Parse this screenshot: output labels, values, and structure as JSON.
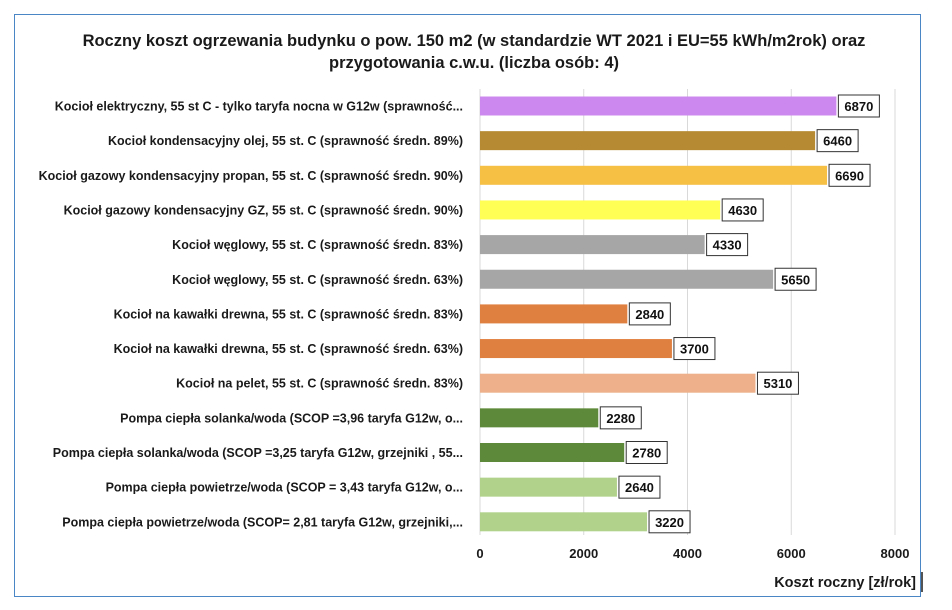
{
  "chart_data": {
    "type": "bar",
    "orientation": "horizontal",
    "title": "Roczny koszt ogrzewania budynku o pow. 150 m2 (w standardzie WT 2021 i EU=55 kWh/m2rok) oraz przygotowania c.w.u. (liczba osób: 4)",
    "xlabel": "Koszt roczny [zł/rok]",
    "ylabel": "",
    "xlim": [
      0,
      8000
    ],
    "x_ticks": [
      "0",
      "2000",
      "4000",
      "6000",
      "8000"
    ],
    "grid": true,
    "legend": "none",
    "categories": [
      "Kocioł  elektryczny, 55 st C - tylko taryfa nocna w G12w (sprawność...",
      "Kocioł  kondensacyjny olej, 55 st. C (sprawność średn. 89%)",
      "Kocioł gazowy kondensacyjny propan, 55 st. C (sprawność średn. 90%)",
      "Kocioł gazowy kondensacyjny GZ, 55 st. C (sprawność średn. 90%)",
      "Kocioł węglowy,  55 st. C (sprawność średn. 83%)",
      "Kocioł węglowy, 55 st. C (sprawność średn. 63%)",
      "Kocioł na kawałki drewna, 55 st. C (sprawność średn. 83%)",
      "Kocioł na kawałki drewna, 55 st. C (sprawność średn. 63%)",
      "Kocioł na pelet, 55 st. C (sprawność średn. 83%)",
      "Pompa ciepła solanka/woda (SCOP =3,96 taryfa G12w, o...",
      "Pompa ciepła solanka/woda (SCOP =3,25 taryfa G12w, grzejniki , 55...",
      "Pompa ciepła powietrze/woda (SCOP = 3,43 taryfa G12w, o...",
      "Pompa ciepła powietrze/woda (SCOP= 2,81 taryfa G12w, grzejniki,..."
    ],
    "values": [
      6870,
      6460,
      6690,
      4630,
      4330,
      5650,
      2840,
      3700,
      5310,
      2280,
      2780,
      2640,
      3220
    ],
    "data_labels": [
      "6870",
      "6460",
      "6690",
      "4630",
      "4330",
      "5650",
      "2840",
      "3700",
      "5310",
      "2280",
      "2780",
      "2640",
      "3220"
    ],
    "colors": [
      "#cc88ee",
      "#b58a32",
      "#f5c043",
      "#ffff55",
      "#a6a6a6",
      "#a6a6a6",
      "#e08040",
      "#e08040",
      "#edb08a",
      "#5d8a3a",
      "#5d8a3a",
      "#b0d28a",
      "#b0d28a"
    ]
  },
  "frame_color": "#4a86c5",
  "grid_color": "#d9d9d9"
}
